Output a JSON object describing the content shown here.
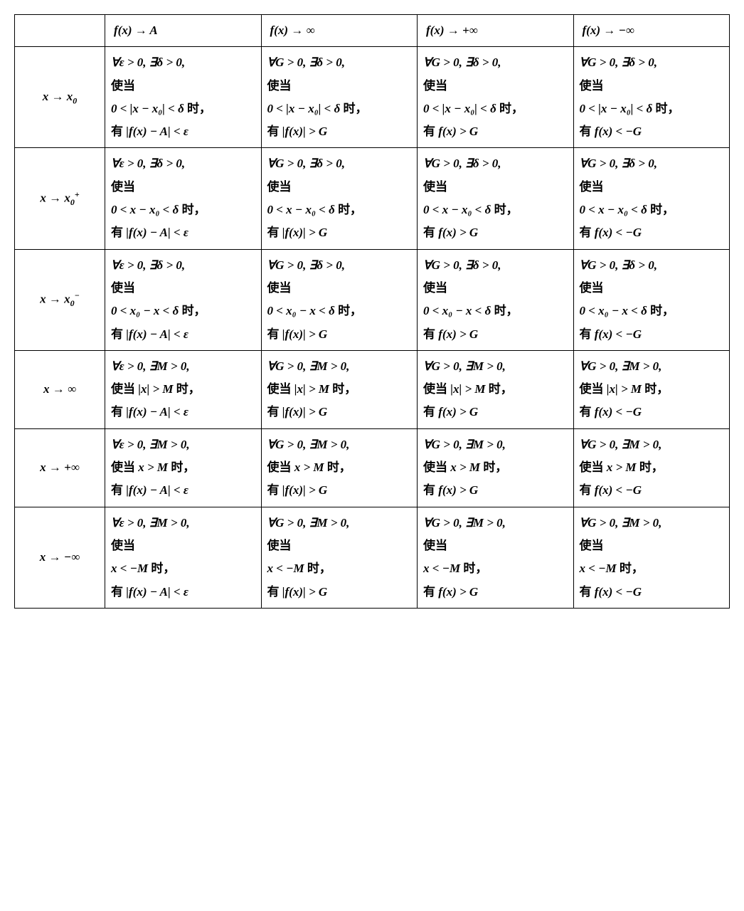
{
  "table": {
    "border_color": "#000000",
    "background_color": "#ffffff",
    "text_color": "#000000",
    "font_size_pt": 13,
    "col_headers": [
      "f(x) → A",
      "f(x) → ∞",
      "f(x) → +∞",
      "f(x) → −∞"
    ],
    "row_headers_html": [
      "x → x<sub>0</sub>",
      "x → x<sub>0</sub><sup>+</sup>",
      "x → x<sub>0</sub><sup>−</sup>",
      "x → ∞",
      "x → +∞",
      "x → −∞"
    ],
    "rows": [
      [
        {
          "l1": "∀ε > 0, ∃δ > 0,",
          "l2": "使当",
          "l3": "0 < |x − x₀| < δ 时，",
          "l4": "有 |f(x) − A| < ε"
        },
        {
          "l1": "∀G > 0, ∃δ > 0,",
          "l2": "使当",
          "l3": "0 < |x − x₀| < δ 时，",
          "l4": "有 |f(x)| > G"
        },
        {
          "l1": "∀G > 0, ∃δ > 0,",
          "l2": "使当",
          "l3": "0 < |x − x₀| < δ 时，",
          "l4": "有 f(x) > G"
        },
        {
          "l1": "∀G > 0, ∃δ > 0,",
          "l2": "使当",
          "l3": "0 < |x − x₀| < δ 时，",
          "l4": "有 f(x) < −G"
        }
      ],
      [
        {
          "l1": "∀ε > 0, ∃δ > 0,",
          "l2": "使当",
          "l3": "0 < x − x₀ < δ 时，",
          "l4": "有 |f(x) − A| < ε"
        },
        {
          "l1": "∀G > 0, ∃δ > 0,",
          "l2": "使当",
          "l3": "0 < x − x₀ < δ 时，",
          "l4": "有 |f(x)| > G"
        },
        {
          "l1": "∀G > 0, ∃δ > 0,",
          "l2": "使当",
          "l3": "0 < x − x₀ < δ 时，",
          "l4": "有 f(x) > G"
        },
        {
          "l1": "∀G > 0, ∃δ > 0,",
          "l2": "使当",
          "l3": "0 < x − x₀ < δ 时，",
          "l4": "有 f(x) < −G"
        }
      ],
      [
        {
          "l1": "∀ε > 0, ∃δ > 0,",
          "l2": "使当",
          "l3": "0 < x₀ − x < δ 时，",
          "l4": "有 |f(x) − A| < ε"
        },
        {
          "l1": "∀G > 0, ∃δ > 0,",
          "l2": "使当",
          "l3": "0 < x₀ − x < δ 时，",
          "l4": "有 |f(x)| > G"
        },
        {
          "l1": "∀G > 0, ∃δ > 0,",
          "l2": "使当",
          "l3": "0 < x₀ − x < δ 时，",
          "l4": "有 f(x) > G"
        },
        {
          "l1": "∀G > 0, ∃δ > 0,",
          "l2": "使当",
          "l3": "0 < x₀ − x < δ 时，",
          "l4": "有 f(x) < −G"
        }
      ],
      [
        {
          "l1": "∀ε > 0, ∃M > 0,",
          "l2": "使当 |x| > M 时，",
          "l3": "",
          "l4": "有 |f(x) − A| < ε"
        },
        {
          "l1": "∀G > 0, ∃M > 0,",
          "l2": "使当 |x| > M 时，",
          "l3": "",
          "l4": "有 |f(x)| > G"
        },
        {
          "l1": "∀G > 0, ∃M > 0,",
          "l2": "使当 |x| > M 时，",
          "l3": "",
          "l4": "有 f(x) > G"
        },
        {
          "l1": "∀G > 0, ∃M > 0,",
          "l2": "使当 |x| > M 时，",
          "l3": "",
          "l4": "有 f(x) < −G"
        }
      ],
      [
        {
          "l1": "∀ε > 0, ∃M > 0,",
          "l2": "使当 x > M 时，",
          "l3": "",
          "l4": "有 |f(x) − A| < ε"
        },
        {
          "l1": "∀G > 0, ∃M > 0,",
          "l2": "使当 x > M 时，",
          "l3": "",
          "l4": "有 |f(x)| > G"
        },
        {
          "l1": "∀G > 0, ∃M > 0,",
          "l2": "使当 x > M 时，",
          "l3": "",
          "l4": "有 f(x) > G"
        },
        {
          "l1": "∀G > 0, ∃M > 0,",
          "l2": "使当 x > M 时，",
          "l3": "",
          "l4": "有 f(x) < −G"
        }
      ],
      [
        {
          "l1": "∀ε > 0, ∃M > 0,",
          "l2": "使当",
          "l3": "x < −M 时，",
          "l4": "有 |f(x) − A| < ε"
        },
        {
          "l1": "∀G > 0, ∃M > 0,",
          "l2": "使当",
          "l3": "x < −M 时，",
          "l4": "有 |f(x)| > G"
        },
        {
          "l1": "∀G > 0, ∃M > 0,",
          "l2": "使当",
          "l3": "x < −M 时，",
          "l4": "有 f(x) > G"
        },
        {
          "l1": "∀G > 0, ∃M > 0,",
          "l2": "使当",
          "l3": "x < −M 时，",
          "l4": "有 f(x) < −G"
        }
      ]
    ]
  }
}
